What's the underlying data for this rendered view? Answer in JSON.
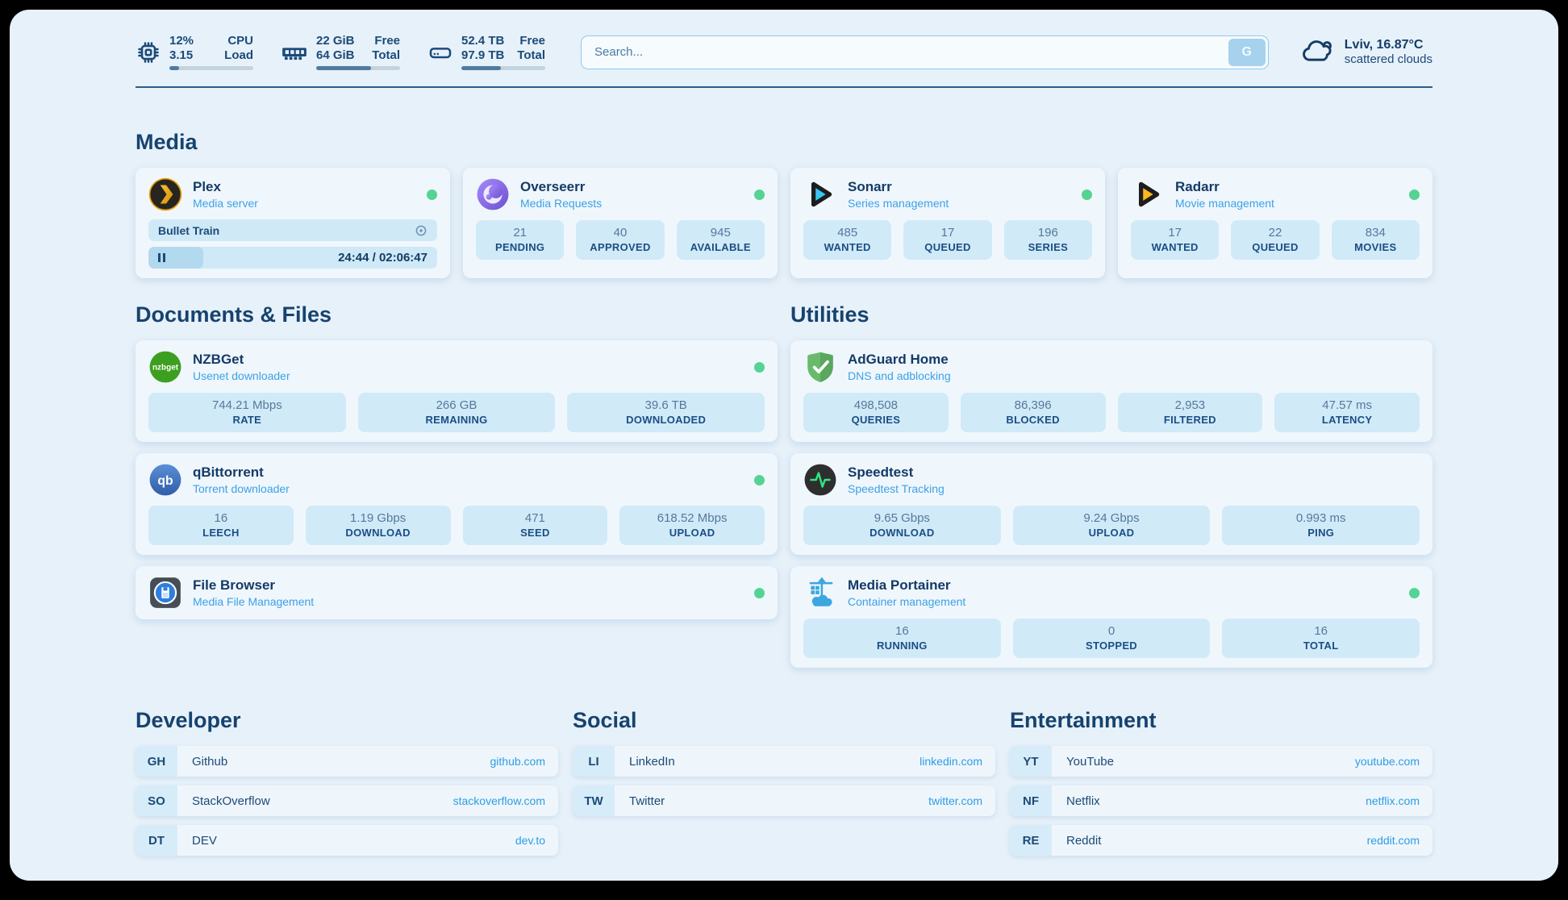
{
  "colors": {
    "accent_green": "#55d392",
    "navy": "#17477a",
    "link_blue": "#2f9ce4",
    "chip_bg": "#d1eaf8",
    "panel_bg": "#e7f1f9"
  },
  "header": {
    "stats": [
      {
        "id": "cpu",
        "icon": "cpu-icon",
        "value_top": "12%",
        "label_top": "CPU",
        "value_bottom": "3.15",
        "label_bottom": "Load",
        "progress_percent": 12
      },
      {
        "id": "ram",
        "icon": "ram-icon",
        "value_top": "22 GiB",
        "label_top": "Free",
        "value_bottom": "64 GiB",
        "label_bottom": "Total",
        "progress_percent": 65
      },
      {
        "id": "disk",
        "icon": "disk-icon",
        "value_top": "52.4 TB",
        "label_top": "Free",
        "value_bottom": "97.9 TB",
        "label_bottom": "Total",
        "progress_percent": 47
      }
    ],
    "search": {
      "placeholder": "Search...",
      "button_label": "G"
    },
    "weather": {
      "icon": "cloud-icon",
      "location": "Lviv, 16.87°C",
      "condition": "scattered clouds"
    }
  },
  "service_groups": [
    {
      "title": "Media",
      "apps": [
        {
          "name": "Plex",
          "subtitle": "Media server",
          "icon": "plex-icon",
          "online": true,
          "player": {
            "title": "Bullet Train",
            "time": "24:44 / 02:06:47",
            "progress_percent": 19
          }
        },
        {
          "name": "Overseerr",
          "subtitle": "Media Requests",
          "icon": "overseerr-icon",
          "online": true,
          "stats": [
            {
              "value": "21",
              "label": "PENDING"
            },
            {
              "value": "40",
              "label": "APPROVED"
            },
            {
              "value": "945",
              "label": "AVAILABLE"
            }
          ]
        },
        {
          "name": "Sonarr",
          "subtitle": "Series management",
          "icon": "sonarr-icon",
          "online": true,
          "stats": [
            {
              "value": "485",
              "label": "WANTED"
            },
            {
              "value": "17",
              "label": "QUEUED"
            },
            {
              "value": "196",
              "label": "SERIES"
            }
          ]
        },
        {
          "name": "Radarr",
          "subtitle": "Movie management",
          "icon": "radarr-icon",
          "online": true,
          "stats": [
            {
              "value": "17",
              "label": "WANTED"
            },
            {
              "value": "22",
              "label": "QUEUED"
            },
            {
              "value": "834",
              "label": "MOVIES"
            }
          ]
        }
      ]
    },
    {
      "title": "Documents & Files",
      "apps": [
        {
          "name": "NZBGet",
          "subtitle": "Usenet downloader",
          "icon": "nzbget-icon",
          "online": true,
          "stats": [
            {
              "value": "744.21 Mbps",
              "label": "RATE"
            },
            {
              "value": "266 GB",
              "label": "REMAINING"
            },
            {
              "value": "39.6 TB",
              "label": "DOWNLOADED"
            }
          ]
        },
        {
          "name": "qBittorrent",
          "subtitle": "Torrent downloader",
          "icon": "qbittorrent-icon",
          "online": true,
          "stats": [
            {
              "value": "16",
              "label": "LEECH"
            },
            {
              "value": "1.19 Gbps",
              "label": "DOWNLOAD"
            },
            {
              "value": "471",
              "label": "SEED"
            },
            {
              "value": "618.52 Mbps",
              "label": "UPLOAD"
            }
          ]
        },
        {
          "name": "File Browser",
          "subtitle": "Media File Management",
          "icon": "filebrowser-icon",
          "online": true
        }
      ]
    },
    {
      "title": "Utilities",
      "apps": [
        {
          "name": "AdGuard Home",
          "subtitle": "DNS and adblocking",
          "icon": "adguard-icon",
          "online": false,
          "stats": [
            {
              "value": "498,508",
              "label": "QUERIES"
            },
            {
              "value": "86,396",
              "label": "BLOCKED"
            },
            {
              "value": "2,953",
              "label": "FILTERED"
            },
            {
              "value": "47.57 ms",
              "label": "LATENCY"
            }
          ]
        },
        {
          "name": "Speedtest",
          "subtitle": "Speedtest Tracking",
          "icon": "speedtest-icon",
          "online": false,
          "stats": [
            {
              "value": "9.65 Gbps",
              "label": "DOWNLOAD"
            },
            {
              "value": "9.24 Gbps",
              "label": "UPLOAD"
            },
            {
              "value": "0.993 ms",
              "label": "PING"
            }
          ]
        },
        {
          "name": "Media Portainer",
          "subtitle": "Container management",
          "icon": "portainer-icon",
          "online": true,
          "stats": [
            {
              "value": "16",
              "label": "RUNNING"
            },
            {
              "value": "0",
              "label": "STOPPED"
            },
            {
              "value": "16",
              "label": "TOTAL"
            }
          ]
        }
      ]
    }
  ],
  "link_groups": [
    {
      "title": "Developer",
      "links": [
        {
          "abbr": "GH",
          "name": "Github",
          "url": "github.com"
        },
        {
          "abbr": "SO",
          "name": "StackOverflow",
          "url": "stackoverflow.com"
        },
        {
          "abbr": "DT",
          "name": "DEV",
          "url": "dev.to"
        }
      ]
    },
    {
      "title": "Social",
      "links": [
        {
          "abbr": "LI",
          "name": "LinkedIn",
          "url": "linkedin.com"
        },
        {
          "abbr": "TW",
          "name": "Twitter",
          "url": "twitter.com"
        }
      ]
    },
    {
      "title": "Entertainment",
      "links": [
        {
          "abbr": "YT",
          "name": "YouTube",
          "url": "youtube.com"
        },
        {
          "abbr": "NF",
          "name": "Netflix",
          "url": "netflix.com"
        },
        {
          "abbr": "RE",
          "name": "Reddit",
          "url": "reddit.com"
        }
      ]
    }
  ]
}
